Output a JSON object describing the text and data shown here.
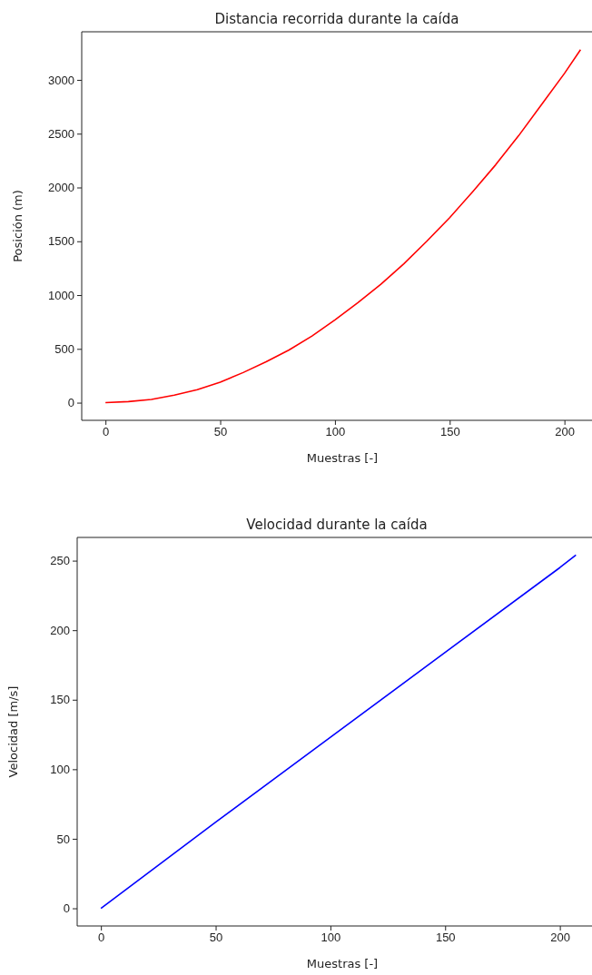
{
  "chart_data": [
    {
      "type": "line",
      "title": "Distancia recorrida durante la caída",
      "xlabel": "Muestras [-]",
      "ylabel": "Posición (m)",
      "xlim": [
        -10.35,
        212
      ],
      "ylim": [
        -164,
        3447
      ],
      "xticks": [
        0,
        50,
        100,
        150,
        200
      ],
      "yticks": [
        0,
        500,
        1000,
        1500,
        2000,
        2500,
        3000
      ],
      "grid": false,
      "series": [
        {
          "color": "#ff0000",
          "x": [
            0,
            10,
            20,
            30,
            40,
            50,
            60,
            70,
            80,
            90,
            100,
            110,
            120,
            130,
            140,
            150,
            160,
            170,
            180,
            190,
            200,
            207
          ],
          "values": [
            0,
            10,
            30,
            70,
            120,
            190,
            280,
            380,
            490,
            620,
            770,
            930,
            1100,
            1290,
            1500,
            1720,
            1960,
            2210,
            2480,
            2770,
            3060,
            3280
          ]
        }
      ]
    },
    {
      "type": "line",
      "title": "Velocidad durante la caída",
      "xlabel": "Muestras [-]",
      "ylabel": "Velocidad [m/s]",
      "xlim": [
        -10.35,
        214
      ],
      "ylim": [
        -12.7,
        266.7
      ],
      "xticks": [
        0,
        50,
        100,
        150,
        200
      ],
      "yticks": [
        0,
        50,
        100,
        150,
        200,
        250
      ],
      "grid": false,
      "series": [
        {
          "color": "#0000ff",
          "x": [
            0,
            50,
            100,
            150,
            200,
            207
          ],
          "values": [
            0,
            62,
            123,
            184,
            245,
            254
          ]
        }
      ]
    }
  ]
}
